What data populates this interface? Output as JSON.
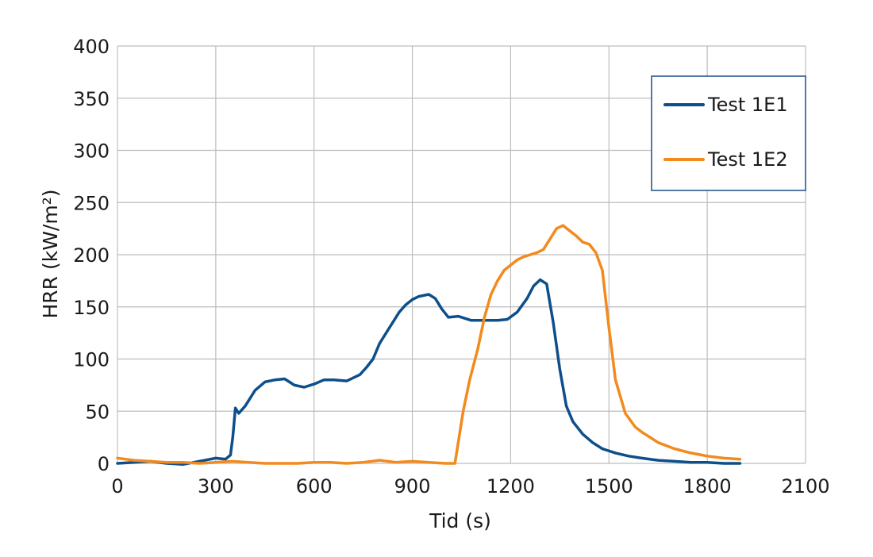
{
  "chart_data": {
    "type": "line",
    "title": "",
    "xlabel": "Tid (s)",
    "ylabel": "HRR (kW/m²)",
    "xlim": [
      0,
      2100
    ],
    "ylim": [
      0,
      400
    ],
    "xticks": [
      0,
      300,
      600,
      900,
      1200,
      1500,
      1800,
      2100
    ],
    "yticks": [
      0,
      50,
      100,
      150,
      200,
      250,
      300,
      350,
      400
    ],
    "x_tick_labels": [
      "0",
      "300",
      "600",
      "900",
      "1200",
      "1500",
      "1800",
      "2100"
    ],
    "y_tick_labels": [
      "0",
      "50",
      "100",
      "150",
      "200",
      "250",
      "300",
      "350",
      "400"
    ],
    "grid": true,
    "legend_position": "top-right",
    "series": [
      {
        "name": "Test 1E1",
        "color": "#0d4f8b",
        "x": [
          0,
          50,
          100,
          150,
          200,
          250,
          300,
          330,
          345,
          352,
          360,
          370,
          390,
          420,
          450,
          480,
          510,
          540,
          570,
          600,
          630,
          660,
          700,
          740,
          760,
          780,
          800,
          830,
          860,
          880,
          900,
          920,
          950,
          970,
          990,
          1010,
          1040,
          1080,
          1120,
          1160,
          1190,
          1220,
          1250,
          1270,
          1290,
          1310,
          1330,
          1350,
          1370,
          1390,
          1420,
          1450,
          1480,
          1520,
          1560,
          1600,
          1650,
          1700,
          1750,
          1800,
          1850,
          1900
        ],
        "y": [
          0,
          1,
          2,
          0,
          -1,
          2,
          5,
          4,
          8,
          25,
          53,
          48,
          55,
          70,
          78,
          80,
          81,
          75,
          73,
          76,
          80,
          80,
          79,
          85,
          92,
          100,
          115,
          130,
          145,
          152,
          157,
          160,
          162,
          158,
          148,
          140,
          141,
          137,
          137,
          137,
          138,
          145,
          158,
          170,
          176,
          172,
          135,
          90,
          55,
          40,
          28,
          20,
          14,
          10,
          7,
          5,
          3,
          2,
          1,
          1,
          0,
          0
        ]
      },
      {
        "name": "Test 1E2",
        "color": "#f28a1e",
        "x": [
          0,
          50,
          100,
          150,
          200,
          250,
          300,
          350,
          400,
          450,
          500,
          550,
          600,
          650,
          700,
          750,
          800,
          850,
          900,
          950,
          1000,
          1030,
          1040,
          1055,
          1075,
          1100,
          1120,
          1140,
          1160,
          1180,
          1200,
          1220,
          1240,
          1260,
          1280,
          1300,
          1320,
          1340,
          1360,
          1380,
          1400,
          1420,
          1440,
          1460,
          1480,
          1500,
          1520,
          1550,
          1580,
          1600,
          1650,
          1700,
          1750,
          1800,
          1850,
          1900
        ],
        "y": [
          5,
          3,
          2,
          1,
          1,
          0,
          1,
          2,
          1,
          0,
          0,
          0,
          1,
          1,
          0,
          1,
          3,
          1,
          2,
          1,
          0,
          0,
          20,
          50,
          80,
          110,
          140,
          162,
          175,
          185,
          190,
          195,
          198,
          200,
          202,
          205,
          215,
          225,
          228,
          223,
          218,
          212,
          210,
          202,
          185,
          130,
          80,
          48,
          35,
          30,
          20,
          14,
          10,
          7,
          5,
          4
        ]
      }
    ]
  }
}
